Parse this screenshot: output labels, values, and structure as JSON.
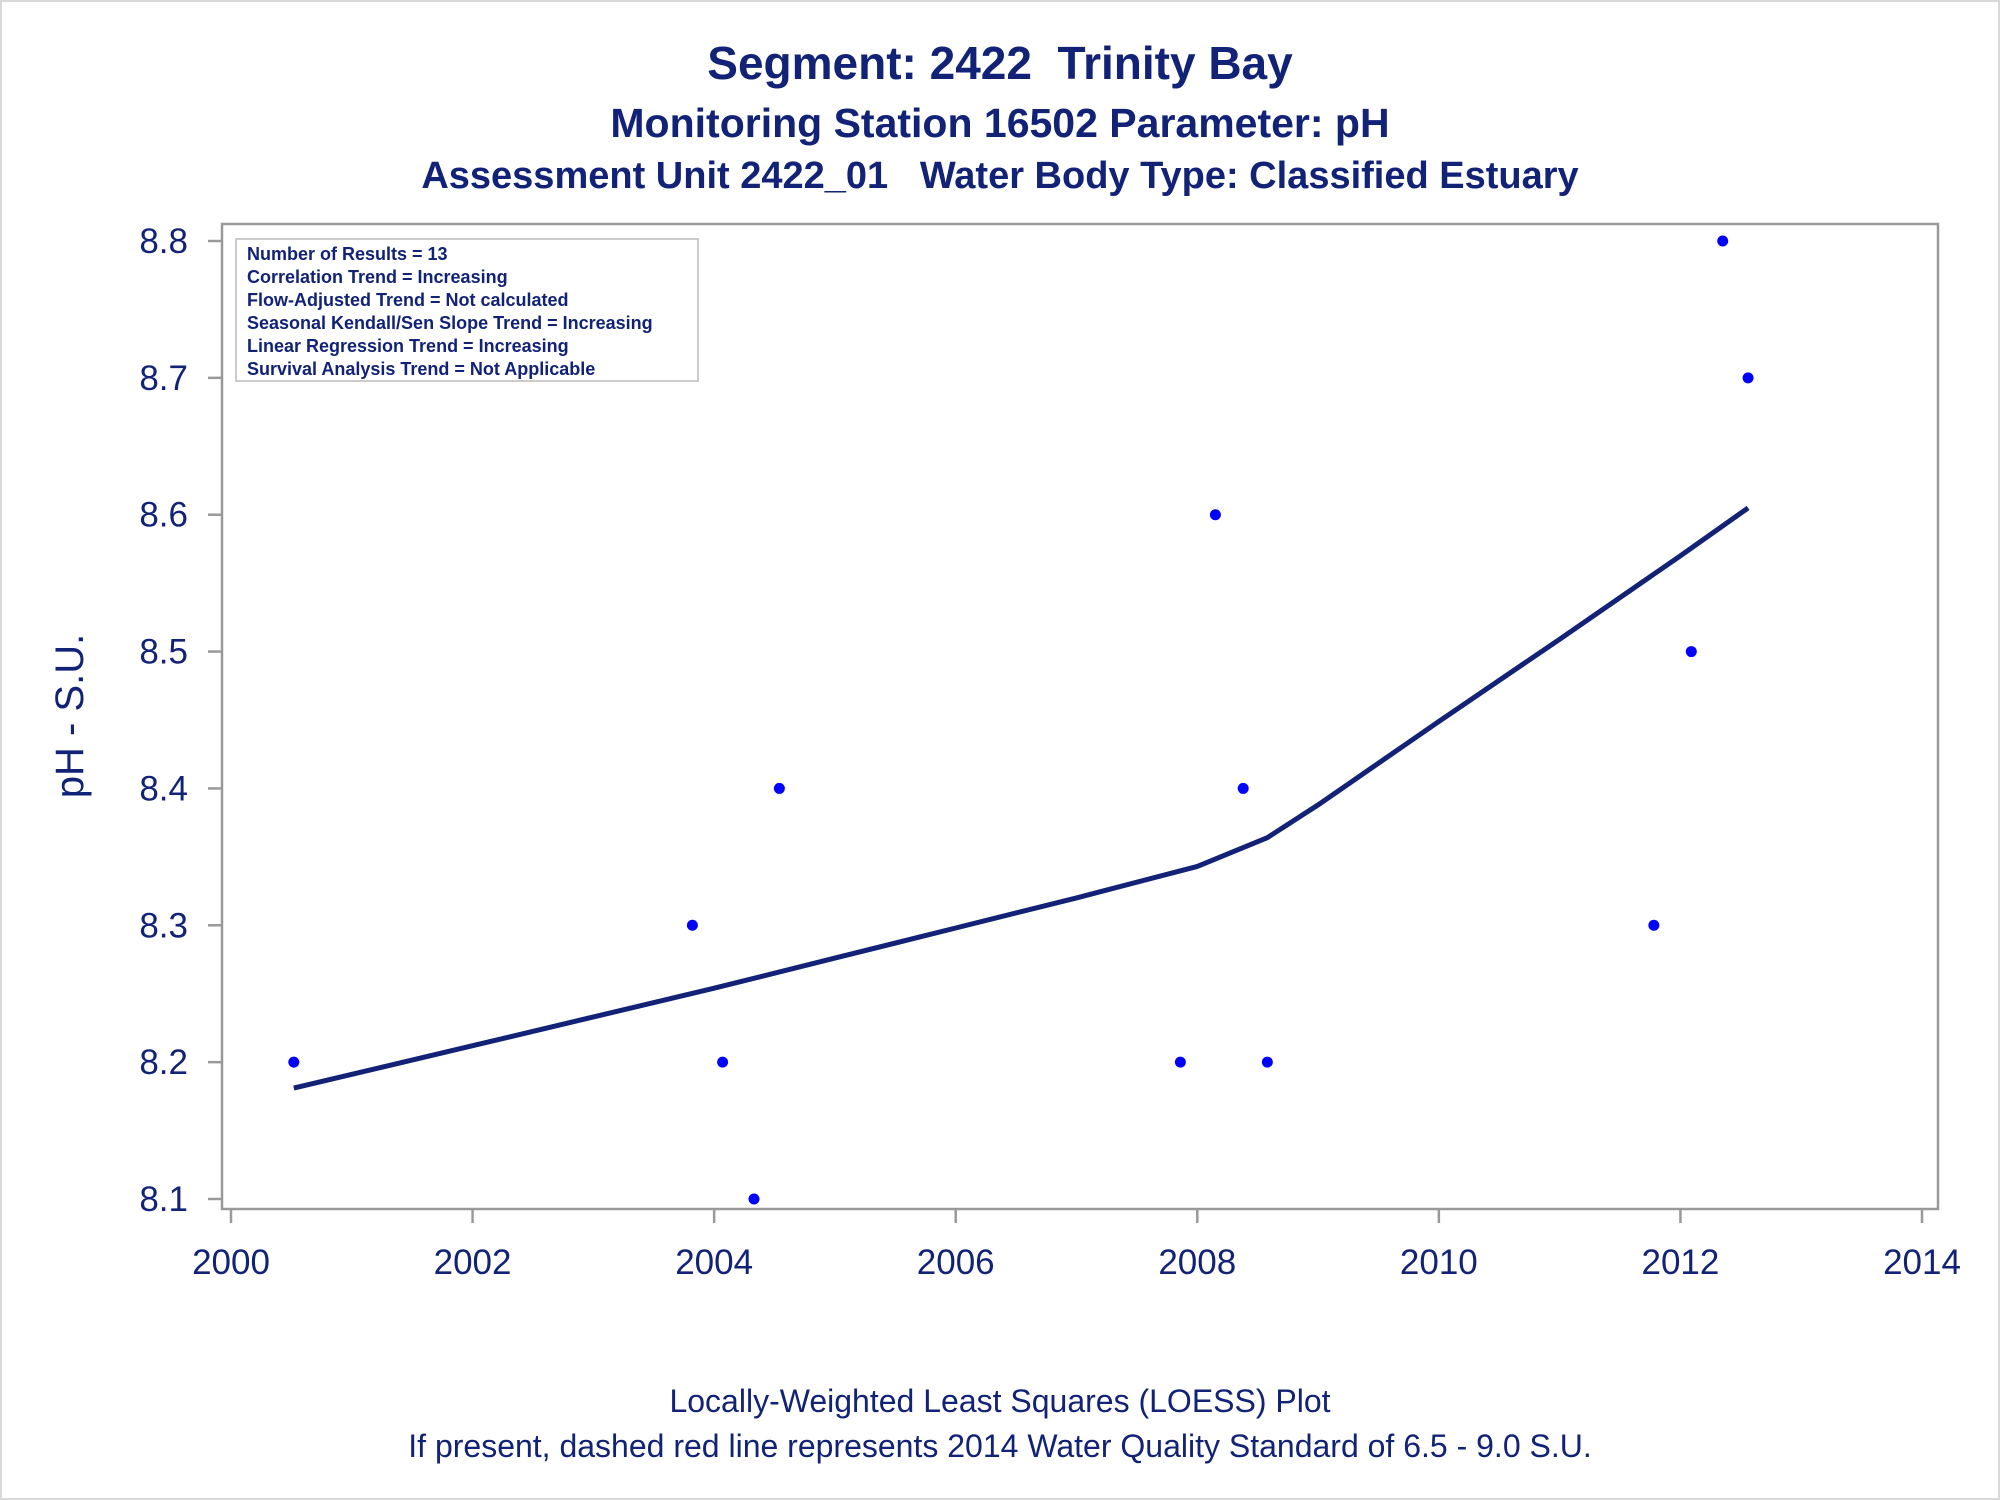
{
  "header": {
    "title": "Segment: 2422  Trinity Bay",
    "subtitle": "Monitoring Station 16502 Parameter: pH",
    "subtitle2": "Assessment Unit 2422_01   Water Body Type: Classified Estuary"
  },
  "stats_box": [
    "Number of Results = 13",
    "Correlation Trend = Increasing",
    "Flow-Adjusted Trend = Not calculated",
    "Seasonal Kendall/Sen Slope Trend = Increasing",
    "Linear Regression Trend = Increasing",
    "Survival Analysis Trend = Not Applicable"
  ],
  "footer": {
    "line1": "Locally-Weighted Least Squares (LOESS) Plot",
    "line2": "If present, dashed red line represents 2014 Water Quality Standard of 6.5 - 9.0 S.U."
  },
  "chart_data": {
    "type": "scatter",
    "ylabel": "pH - S.U.",
    "xlabel": "",
    "xlim": [
      2000,
      2014
    ],
    "ylim": [
      8.1,
      8.8
    ],
    "x_ticks": [
      2000,
      2002,
      2004,
      2006,
      2008,
      2010,
      2012,
      2014
    ],
    "y_ticks": [
      8.1,
      8.2,
      8.3,
      8.4,
      8.5,
      8.6,
      8.7,
      8.8
    ],
    "grid": false,
    "legend": "none",
    "colors": {
      "points": "#0000ff",
      "line": "#112277",
      "text": "#112277",
      "axis": "#999999"
    },
    "points": [
      {
        "x": 2000.52,
        "y": 8.2
      },
      {
        "x": 2003.82,
        "y": 8.3
      },
      {
        "x": 2004.07,
        "y": 8.2
      },
      {
        "x": 2004.33,
        "y": 8.1
      },
      {
        "x": 2004.54,
        "y": 8.4
      },
      {
        "x": 2007.86,
        "y": 8.2
      },
      {
        "x": 2008.15,
        "y": 8.6
      },
      {
        "x": 2008.38,
        "y": 8.4
      },
      {
        "x": 2008.58,
        "y": 8.2
      },
      {
        "x": 2011.78,
        "y": 8.3
      },
      {
        "x": 2012.09,
        "y": 8.5
      },
      {
        "x": 2012.35,
        "y": 8.8
      },
      {
        "x": 2012.56,
        "y": 8.7
      }
    ],
    "loess": [
      {
        "x": 2000.52,
        "y": 8.181
      },
      {
        "x": 2002.0,
        "y": 8.212
      },
      {
        "x": 2004.0,
        "y": 8.254
      },
      {
        "x": 2005.0,
        "y": 8.276
      },
      {
        "x": 2006.0,
        "y": 8.298
      },
      {
        "x": 2007.0,
        "y": 8.32
      },
      {
        "x": 2008.0,
        "y": 8.343
      },
      {
        "x": 2008.58,
        "y": 8.364
      },
      {
        "x": 2009.0,
        "y": 8.388
      },
      {
        "x": 2010.0,
        "y": 8.449
      },
      {
        "x": 2011.0,
        "y": 8.509
      },
      {
        "x": 2012.0,
        "y": 8.57
      },
      {
        "x": 2012.56,
        "y": 8.605
      }
    ]
  }
}
